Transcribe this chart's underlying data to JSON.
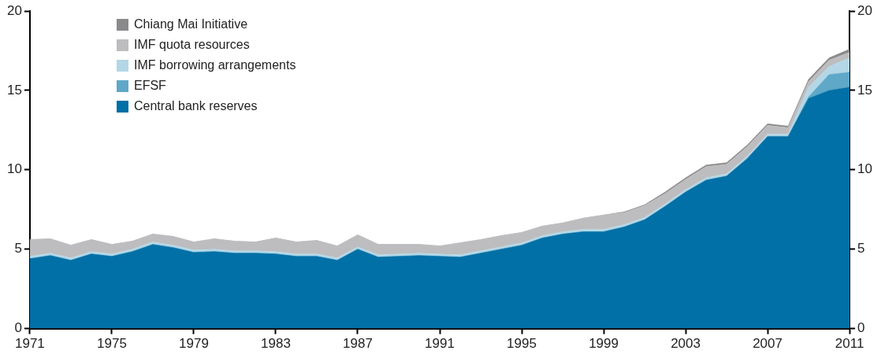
{
  "chart_data": {
    "type": "area",
    "stacked": true,
    "legend": "top left",
    "grid": false,
    "x": [
      1971,
      1972,
      1973,
      1974,
      1975,
      1976,
      1977,
      1978,
      1979,
      1980,
      1981,
      1982,
      1983,
      1984,
      1985,
      1986,
      1987,
      1988,
      1989,
      1990,
      1991,
      1992,
      1993,
      1994,
      1995,
      1996,
      1997,
      1998,
      1999,
      2000,
      2001,
      2002,
      2003,
      2004,
      2005,
      2006,
      2007,
      2008,
      2009,
      2010,
      2011
    ],
    "xlim": [
      1971,
      2011
    ],
    "xticks": [
      1971,
      1975,
      1979,
      1983,
      1987,
      1991,
      1995,
      1999,
      2003,
      2007,
      2011
    ],
    "ylim": [
      0,
      20
    ],
    "yticks": [
      0,
      5,
      10,
      15,
      20
    ],
    "y2lim": [
      0,
      20
    ],
    "y2ticks": [
      0,
      5,
      10,
      15,
      20
    ],
    "series": [
      {
        "name": "Central bank reserves",
        "color": "#0070a6",
        "values": [
          4.4,
          4.6,
          4.3,
          4.7,
          4.55,
          4.85,
          5.3,
          5.1,
          4.8,
          4.85,
          4.75,
          4.75,
          4.7,
          4.55,
          4.55,
          4.3,
          5.0,
          4.5,
          4.55,
          4.6,
          4.55,
          4.5,
          4.75,
          5.0,
          5.25,
          5.7,
          5.95,
          6.1,
          6.1,
          6.4,
          6.85,
          7.7,
          8.6,
          9.35,
          9.6,
          10.7,
          12.1,
          12.1,
          14.5,
          15.0,
          15.2
        ]
      },
      {
        "name": "EFSF",
        "color": "#5fa8c8",
        "values": [
          0,
          0,
          0,
          0,
          0,
          0,
          0,
          0,
          0,
          0,
          0,
          0,
          0,
          0,
          0,
          0,
          0,
          0,
          0,
          0,
          0,
          0,
          0,
          0,
          0,
          0,
          0,
          0,
          0,
          0,
          0,
          0,
          0,
          0,
          0,
          0,
          0,
          0,
          0.1,
          1.0,
          0.95
        ]
      },
      {
        "name": "IMF borrowing arrangements",
        "color": "#b3d7e6",
        "values": [
          0.15,
          0.15,
          0.15,
          0.15,
          0.15,
          0.15,
          0.15,
          0.15,
          0.15,
          0.15,
          0.15,
          0.15,
          0.15,
          0.15,
          0.15,
          0.15,
          0.15,
          0.15,
          0.15,
          0.15,
          0.15,
          0.15,
          0.15,
          0.15,
          0.15,
          0.15,
          0.15,
          0.15,
          0.15,
          0.15,
          0.15,
          0.15,
          0.15,
          0.15,
          0.15,
          0.15,
          0.15,
          0.15,
          0.6,
          0.5,
          0.9
        ]
      },
      {
        "name": "IMF quota resources",
        "color": "#bdbdbf",
        "values": [
          1.05,
          0.9,
          0.8,
          0.75,
          0.6,
          0.5,
          0.5,
          0.55,
          0.5,
          0.65,
          0.6,
          0.55,
          0.85,
          0.75,
          0.85,
          0.75,
          0.75,
          0.65,
          0.6,
          0.55,
          0.5,
          0.75,
          0.7,
          0.7,
          0.65,
          0.6,
          0.55,
          0.7,
          0.9,
          0.75,
          0.75,
          0.65,
          0.65,
          0.7,
          0.6,
          0.6,
          0.55,
          0.4,
          0.35,
          0.4,
          0.35
        ]
      },
      {
        "name": "Chiang Mai Initiative",
        "color": "#8a8a8c",
        "values": [
          0,
          0,
          0,
          0,
          0,
          0,
          0,
          0,
          0,
          0,
          0,
          0,
          0,
          0,
          0,
          0,
          0,
          0,
          0,
          0,
          0,
          0,
          0,
          0,
          0,
          0,
          0,
          0,
          0,
          0.05,
          0.05,
          0.1,
          0.1,
          0.1,
          0.1,
          0.1,
          0.1,
          0.1,
          0.15,
          0.15,
          0.2
        ]
      }
    ]
  }
}
